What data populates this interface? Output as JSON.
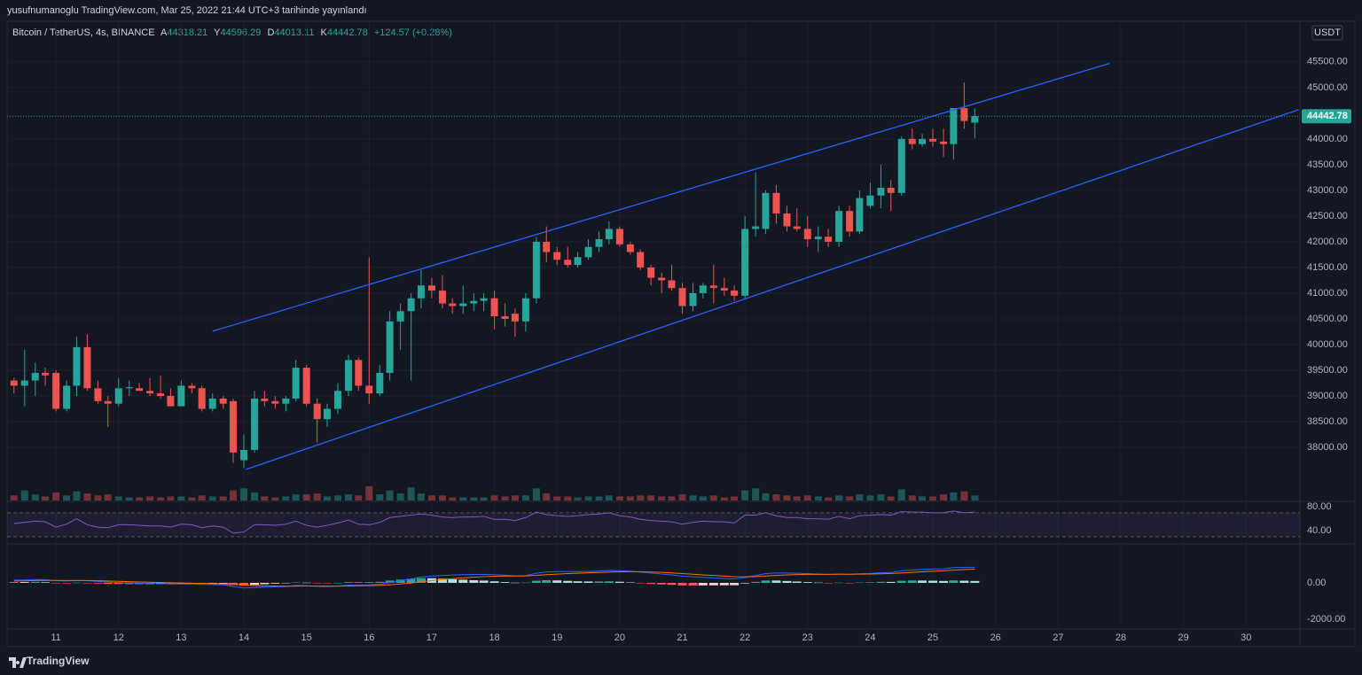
{
  "header": {
    "title": "yusufnumanoglu TradingView.com, Mar 25, 2022 21:44 UTC+3 tarihinde yayınlandı"
  },
  "footer": {
    "brand": "TradingView"
  },
  "chart_data": [
    {
      "type": "candlestick",
      "title": "Bitcoin / TetherUS, 4s, BINANCE",
      "ohlc_labels": [
        "A",
        "Y",
        "D",
        "K"
      ],
      "change": "+124.57 (+0.28%)",
      "currency": "USDT",
      "up_color": "#26a69a",
      "down_color": "#ef5350",
      "grid": true,
      "last_price_line": true,
      "xlim": [
        10.22,
        30.86
      ],
      "xticks": [
        11,
        12,
        13,
        14,
        15,
        16,
        17,
        18,
        19,
        20,
        21,
        22,
        23,
        24,
        25,
        26,
        27,
        28,
        29,
        30
      ],
      "ylim": [
        37570,
        46290
      ],
      "yticks": [
        {
          "value": 38000,
          "label": "38000.00"
        },
        {
          "value": 38500,
          "label": "38500.00"
        },
        {
          "value": 39000,
          "label": "39000.00"
        },
        {
          "value": 39500,
          "label": "39500.00"
        },
        {
          "value": 40000,
          "label": "40000.00"
        },
        {
          "value": 40500,
          "label": "40500.00"
        },
        {
          "value": 41000,
          "label": "41000.00"
        },
        {
          "value": 41500,
          "label": "41500.00"
        },
        {
          "value": 42000,
          "label": "42000.00"
        },
        {
          "value": 42500,
          "label": "42500.00"
        },
        {
          "value": 43000,
          "label": "43000.00"
        },
        {
          "value": 43500,
          "label": "43500.00"
        },
        {
          "value": 44000,
          "label": "44000.00"
        },
        {
          "value": 45000,
          "label": "45000.00"
        },
        {
          "value": 45500,
          "label": "45500.00"
        }
      ],
      "x": [
        10.33,
        10.5,
        10.67,
        10.83,
        11,
        11.17,
        11.33,
        11.5,
        11.67,
        11.83,
        12,
        12.17,
        12.33,
        12.5,
        12.67,
        12.83,
        13,
        13.17,
        13.33,
        13.5,
        13.67,
        13.83,
        14,
        14.17,
        14.33,
        14.5,
        14.67,
        14.83,
        15,
        15.17,
        15.33,
        15.5,
        15.67,
        15.83,
        16,
        16.17,
        16.33,
        16.5,
        16.67,
        16.83,
        17,
        17.17,
        17.33,
        17.5,
        17.67,
        17.83,
        18,
        18.17,
        18.33,
        18.5,
        18.67,
        18.83,
        19,
        19.17,
        19.33,
        19.5,
        19.67,
        19.83,
        20,
        20.17,
        20.33,
        20.5,
        20.67,
        20.83,
        21,
        21.17,
        21.33,
        21.5,
        21.67,
        21.83,
        22,
        22.17,
        22.33,
        22.5,
        22.67,
        22.83,
        23,
        23.17,
        23.33,
        23.5,
        23.67,
        23.83,
        24,
        24.17,
        24.33,
        24.5,
        24.67,
        24.83,
        25,
        25.17,
        25.33,
        25.5,
        25.67
      ],
      "open": [
        39300,
        39200,
        39300,
        39450,
        39450,
        38750,
        39200,
        39950,
        39150,
        38900,
        38850,
        39150,
        39150,
        39100,
        39050,
        39000,
        38800,
        39200,
        39150,
        38750,
        38950,
        38900,
        37750,
        37950,
        38950,
        38900,
        38850,
        38950,
        39550,
        38850,
        38550,
        38750,
        39100,
        39700,
        39200,
        39050,
        39450,
        40450,
        40650,
        40900,
        41150,
        41050,
        40800,
        40750,
        40800,
        40850,
        40900,
        40550,
        40600,
        40450,
        40900,
        42000,
        41800,
        41650,
        41550,
        41700,
        41900,
        42050,
        42250,
        41950,
        41800,
        41500,
        41300,
        41250,
        41100,
        40750,
        41000,
        41150,
        41100,
        41050,
        40950,
        42250,
        42250,
        42950,
        42550,
        42300,
        42250,
        42050,
        42100,
        42000,
        42600,
        42200,
        42700,
        42900,
        43050,
        42950,
        44000,
        43900,
        44000,
        43950,
        43900,
        44600,
        44318.21
      ],
      "high": [
        39350,
        39900,
        39650,
        39550,
        39500,
        39300,
        40150,
        40200,
        39300,
        39000,
        39350,
        39300,
        39250,
        39350,
        39400,
        39150,
        39300,
        39250,
        39200,
        39050,
        39000,
        38950,
        38250,
        39100,
        39100,
        39000,
        39000,
        39700,
        39600,
        38950,
        38850,
        39250,
        39800,
        39750,
        41700,
        39600,
        40650,
        40800,
        41000,
        41450,
        41300,
        41350,
        40900,
        41150,
        41000,
        41000,
        41050,
        40800,
        40700,
        41000,
        42100,
        42300,
        41900,
        41900,
        41800,
        42050,
        42200,
        42400,
        42300,
        42000,
        41850,
        41550,
        41400,
        41550,
        41200,
        41200,
        41200,
        41550,
        41300,
        41150,
        42500,
        43350,
        43000,
        43100,
        42700,
        42650,
        42500,
        42300,
        42250,
        42700,
        42700,
        43000,
        43150,
        43500,
        43200,
        44050,
        44200,
        44100,
        44200,
        44200,
        44600,
        45100,
        44596.29
      ],
      "low": [
        39050,
        38800,
        39000,
        39200,
        38700,
        38700,
        39000,
        39100,
        38850,
        38400,
        38800,
        39000,
        39100,
        39000,
        38950,
        38800,
        38800,
        39050,
        38700,
        38700,
        38750,
        37700,
        37600,
        37900,
        38800,
        38750,
        38700,
        38900,
        38800,
        38100,
        38400,
        38650,
        39000,
        39100,
        38850,
        39000,
        39300,
        39900,
        39300,
        40700,
        40900,
        40700,
        40600,
        40600,
        40650,
        40650,
        40300,
        40350,
        40150,
        40250,
        40800,
        41600,
        41550,
        41500,
        41500,
        41650,
        41800,
        41950,
        41900,
        41750,
        41450,
        41150,
        41000,
        41050,
        40600,
        40650,
        40900,
        40800,
        40950,
        40850,
        40900,
        42100,
        42150,
        42350,
        42200,
        42200,
        41900,
        41800,
        41900,
        41900,
        42100,
        42150,
        42650,
        42650,
        42600,
        42900,
        43800,
        43850,
        43850,
        43650,
        43600,
        44200,
        44013.11
      ],
      "close": [
        39200,
        39300,
        39450,
        39400,
        38750,
        39200,
        39950,
        39150,
        38900,
        38850,
        39150,
        39170,
        39100,
        39050,
        39000,
        38800,
        39200,
        39150,
        38750,
        38950,
        38850,
        37900,
        37950,
        38950,
        38900,
        38850,
        38950,
        39550,
        38850,
        38550,
        38750,
        39100,
        39700,
        39200,
        39050,
        39450,
        40450,
        40650,
        40900,
        41150,
        41050,
        40800,
        40750,
        40800,
        40850,
        40900,
        40550,
        40500,
        40450,
        40900,
        42000,
        41800,
        41650,
        41550,
        41700,
        41900,
        42050,
        42250,
        41950,
        41800,
        41500,
        41300,
        41250,
        41100,
        40750,
        41000,
        41150,
        41100,
        41050,
        40950,
        42250,
        42300,
        42950,
        42550,
        42300,
        42250,
        42050,
        42100,
        42000,
        42600,
        42200,
        42850,
        42900,
        43050,
        42950,
        44000,
        43900,
        44000,
        43950,
        43900,
        44600,
        44350,
        44442.78
      ],
      "volume": [
        5,
        10,
        6,
        4,
        8,
        5,
        9,
        7,
        5,
        6,
        4,
        3,
        3,
        4,
        3,
        4,
        4,
        3,
        5,
        4,
        4,
        10,
        12,
        8,
        4,
        3,
        4,
        6,
        6,
        7,
        4,
        5,
        6,
        5,
        14,
        6,
        10,
        7,
        13,
        7,
        5,
        5,
        3,
        3,
        3,
        3,
        5,
        4,
        5,
        5,
        12,
        7,
        4,
        4,
        3,
        4,
        4,
        5,
        4,
        4,
        5,
        5,
        4,
        4,
        6,
        5,
        4,
        5,
        3,
        4,
        10,
        12,
        7,
        6,
        5,
        4,
        5,
        4,
        3,
        5,
        4,
        6,
        5,
        6,
        4,
        11,
        5,
        4,
        4,
        6,
        8,
        9,
        5
      ],
      "trend_color": "#2962ff",
      "trend_lines": [
        {
          "x": [
            13.5,
            27.82
          ],
          "y": [
            40260,
            45470
          ]
        },
        {
          "x": [
            14.03,
            30.84
          ],
          "y": [
            37570,
            44570
          ]
        }
      ]
    },
    {
      "type": "rsi",
      "color": "#7e57c2",
      "ylim": [
        21,
        89
      ],
      "bands": [
        30,
        70
      ],
      "yticks": [
        {
          "value": 80,
          "label": "80.00"
        },
        {
          "value": 40,
          "label": "40.00"
        }
      ],
      "values": [
        52,
        54,
        56,
        55,
        46,
        51,
        60,
        50,
        46,
        45,
        50,
        50,
        49,
        48,
        48,
        46,
        51,
        50,
        45,
        48,
        46,
        36,
        38,
        50,
        50,
        49,
        51,
        56,
        49,
        46,
        49,
        53,
        58,
        51,
        50,
        54,
        62,
        64,
        66,
        68,
        66,
        63,
        62,
        63,
        63,
        64,
        59,
        59,
        57,
        62,
        71,
        67,
        65,
        64,
        65,
        67,
        68,
        70,
        65,
        63,
        59,
        57,
        56,
        55,
        51,
        54,
        56,
        55,
        55,
        53,
        66,
        66,
        70,
        65,
        62,
        62,
        60,
        60,
        59,
        64,
        60,
        65,
        66,
        67,
        66,
        72,
        71,
        71,
        70,
        70,
        73,
        70,
        71
      ]
    },
    {
      "type": "macd",
      "ylim": [
        -2540,
        2050
      ],
      "yticks": [
        {
          "value": 0,
          "label": "0.00"
        },
        {
          "value": -2000,
          "label": "-2000.00"
        }
      ],
      "series": [
        {
          "color": "#2962ff",
          "values": [
            150,
            160,
            180,
            170,
            120,
            100,
            140,
            120,
            80,
            40,
            20,
            0,
            -20,
            -30,
            -40,
            -60,
            -60,
            -60,
            -80,
            -90,
            -100,
            -200,
            -280,
            -260,
            -240,
            -220,
            -200,
            -150,
            -160,
            -190,
            -200,
            -180,
            -130,
            -120,
            -110,
            -80,
            20,
            120,
            220,
            320,
            380,
            410,
            430,
            450,
            460,
            470,
            450,
            420,
            390,
            400,
            530,
            600,
            620,
            620,
            620,
            630,
            650,
            680,
            670,
            640,
            600,
            540,
            490,
            440,
            370,
            330,
            300,
            270,
            240,
            210,
            300,
            400,
            510,
            540,
            540,
            530,
            510,
            490,
            470,
            490,
            470,
            500,
            520,
            560,
            570,
            660,
            710,
            740,
            760,
            770,
            840,
            850,
            860
          ]
        },
        {
          "color": "#ff6d00",
          "values": [
            100,
            112,
            126,
            135,
            132,
            126,
            128,
            127,
            118,
            102,
            86,
            69,
            51,
            35,
            20,
            4,
            -9,
            -19,
            -31,
            -43,
            -54,
            -83,
            -122,
            -150,
            -168,
            -178,
            -182,
            -176,
            -173,
            -176,
            -181,
            -181,
            -171,
            -161,
            -151,
            -137,
            -106,
            -61,
            -5,
            60,
            124,
            181,
            231,
            275,
            312,
            344,
            365,
            376,
            379,
            383,
            412,
            450,
            484,
            511,
            533,
            552,
            572,
            594,
            609,
            615,
            612,
            598,
            576,
            549,
            513,
            476,
            441,
            407,
            374,
            341,
            333,
            346,
            379,
            411,
            437,
            456,
            467,
            472,
            472,
            476,
            475,
            480,
            488,
            502,
            516,
            545,
            578,
            610,
            640,
            666,
            701,
            731,
            757
          ]
        }
      ],
      "histogram": [
        50,
        48,
        54,
        35,
        -12,
        -26,
        12,
        -7,
        -38,
        -62,
        -66,
        -69,
        -71,
        -65,
        -60,
        -64,
        -51,
        -41,
        -49,
        -47,
        -46,
        -117,
        -158,
        -110,
        -72,
        -42,
        -18,
        26,
        13,
        -14,
        -19,
        1,
        41,
        41,
        41,
        57,
        126,
        181,
        225,
        260,
        256,
        229,
        199,
        175,
        148,
        126,
        85,
        44,
        11,
        17,
        118,
        150,
        136,
        109,
        87,
        78,
        78,
        86,
        61,
        25,
        -12,
        -58,
        -86,
        -109,
        -143,
        -146,
        -141,
        -137,
        -134,
        -131,
        -33,
        54,
        131,
        129,
        103,
        74,
        43,
        18,
        -2,
        14,
        -5,
        20,
        32,
        58,
        54,
        115,
        132,
        130,
        120,
        104,
        139,
        119,
        103
      ]
    }
  ]
}
